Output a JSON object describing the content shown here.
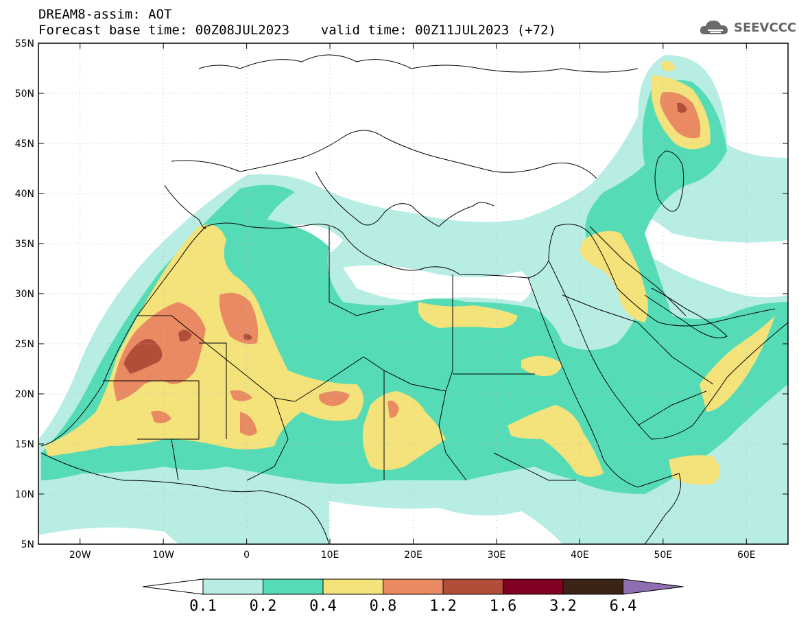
{
  "header": {
    "line1": "DREAM8-assim: AOT",
    "line2": "Forecast base time: 00Z08JUL2023    valid time: 00Z11JUL2023 (+72)"
  },
  "logo": {
    "text": "SEEVCCC",
    "icon": "cloud-icon"
  },
  "map": {
    "lat_ticks": [
      "55N",
      "50N",
      "45N",
      "40N",
      "35N",
      "30N",
      "25N",
      "20N",
      "15N",
      "10N",
      "5N"
    ],
    "lat_values": [
      55,
      50,
      45,
      40,
      35,
      30,
      25,
      20,
      15,
      10,
      5
    ],
    "lon_ticks": [
      "20W",
      "10W",
      "0",
      "10E",
      "20E",
      "30E",
      "40E",
      "50E",
      "60E"
    ],
    "lon_values": [
      -20,
      -10,
      0,
      10,
      20,
      30,
      40,
      50,
      60
    ],
    "lon_range": [
      -25,
      65
    ],
    "lat_range": [
      5,
      55
    ],
    "grid": "dotted"
  },
  "colorbar": {
    "labels": [
      "0.1",
      "0.2",
      "0.4",
      "0.8",
      "1.2",
      "1.6",
      "3.2",
      "6.4"
    ],
    "colors": [
      "#b8ede4",
      "#55dcb6",
      "#f4e27a",
      "#e98a63",
      "#b04e3a",
      "#820022",
      "#3b2318",
      "#8f6fb0"
    ],
    "under_color": "#ffffff"
  },
  "colors": {
    "level1": "#b8ede4",
    "level2": "#55dcb6",
    "level3": "#f4e27a",
    "level4": "#e98a63",
    "level5": "#b04e3a"
  }
}
